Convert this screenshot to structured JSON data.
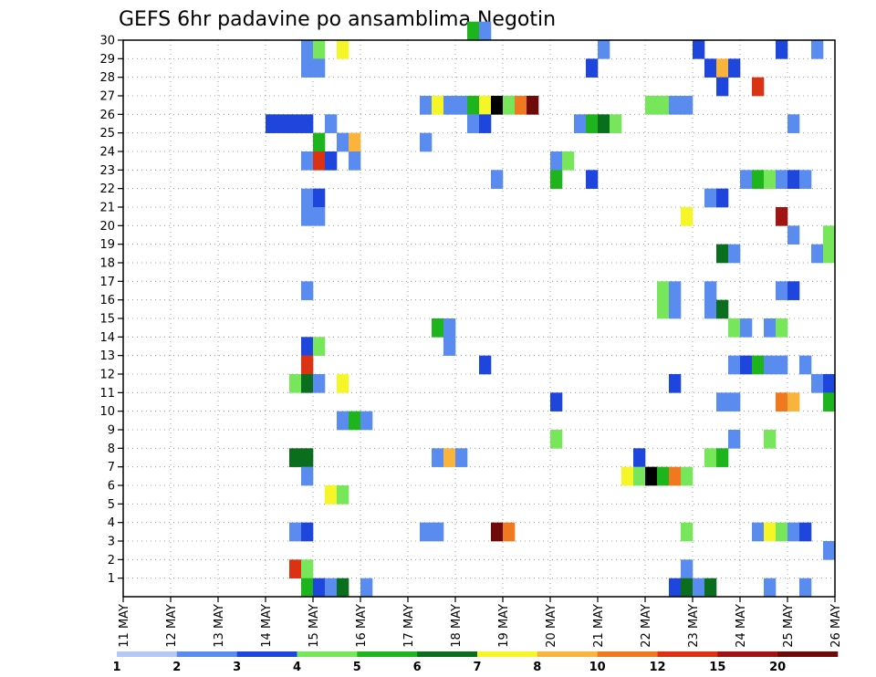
{
  "chart_data": {
    "type": "heatmap",
    "title": "GEFS 6hr padavine po ansamblima Negotin",
    "x_tick_labels": [
      "11 MAY",
      "12 MAY",
      "13 MAY",
      "14 MAY",
      "15 MAY",
      "16 MAY",
      "17 MAY",
      "18 MAY",
      "19 MAY",
      "20 MAY",
      "21 MAY",
      "22 MAY",
      "23 MAY",
      "24 MAY",
      "25 MAY",
      "26 MAY"
    ],
    "x_step_hours": 6,
    "y_tick_labels": [
      "1",
      "2",
      "3",
      "4",
      "5",
      "6",
      "7",
      "8",
      "9",
      "10",
      "11",
      "12",
      "13",
      "14",
      "15",
      "16",
      "17",
      "18",
      "19",
      "20",
      "21",
      "22",
      "23",
      "24",
      "25",
      "26",
      "27",
      "28",
      "29",
      "30"
    ],
    "y_range": [
      0,
      30
    ],
    "grid": true,
    "legend": {
      "placement": "bottom",
      "labels": [
        "1",
        "2",
        "3",
        "4",
        "5",
        "6",
        "7",
        "8",
        "10",
        "12",
        "15",
        "20"
      ],
      "colors": [
        "#b4c8f5",
        "#5a8cf0",
        "#1e46dc",
        "#78e65a",
        "#1eb41e",
        "#0a6e1e",
        "#f5f528",
        "#fab43c",
        "#f0781e",
        "#dc3214",
        "#a01414",
        "#6e0a0a"
      ]
    },
    "cells": [
      [
        30,
        29,
        4
      ],
      [
        30,
        30,
        1
      ],
      [
        29,
        15,
        1
      ],
      [
        29,
        16,
        3
      ],
      [
        29,
        18,
        6
      ],
      [
        29,
        40,
        1
      ],
      [
        29,
        48,
        2
      ],
      [
        29,
        55,
        2
      ],
      [
        29,
        58,
        1
      ],
      [
        28,
        15,
        1
      ],
      [
        28,
        16,
        1
      ],
      [
        28,
        39,
        2
      ],
      [
        28,
        49,
        2
      ],
      [
        28,
        50,
        7
      ],
      [
        28,
        51,
        2
      ],
      [
        27,
        50,
        2
      ],
      [
        27,
        53,
        9
      ],
      [
        26,
        25,
        1
      ],
      [
        26,
        26,
        6
      ],
      [
        26,
        27,
        1
      ],
      [
        26,
        28,
        1
      ],
      [
        26,
        29,
        4
      ],
      [
        26,
        30,
        6
      ],
      [
        26,
        31,
        12
      ],
      [
        26,
        32,
        3
      ],
      [
        26,
        33,
        8
      ],
      [
        26,
        34,
        11
      ],
      [
        26,
        44,
        3
      ],
      [
        26,
        45,
        3
      ],
      [
        26,
        46,
        1
      ],
      [
        26,
        47,
        1
      ],
      [
        25,
        12,
        2
      ],
      [
        25,
        13,
        2
      ],
      [
        25,
        14,
        2
      ],
      [
        25,
        15,
        2
      ],
      [
        25,
        17,
        1
      ],
      [
        25,
        29,
        1
      ],
      [
        25,
        30,
        2
      ],
      [
        25,
        38,
        1
      ],
      [
        25,
        39,
        4
      ],
      [
        25,
        40,
        5
      ],
      [
        25,
        41,
        3
      ],
      [
        25,
        56,
        1
      ],
      [
        24,
        16,
        4
      ],
      [
        24,
        18,
        1
      ],
      [
        24,
        19,
        7
      ],
      [
        24,
        25,
        1
      ],
      [
        23,
        15,
        1
      ],
      [
        23,
        16,
        9
      ],
      [
        23,
        17,
        2
      ],
      [
        23,
        19,
        1
      ],
      [
        23,
        36,
        1
      ],
      [
        23,
        37,
        3
      ],
      [
        22,
        31,
        1
      ],
      [
        22,
        36,
        4
      ],
      [
        22,
        39,
        2
      ],
      [
        22,
        52,
        1
      ],
      [
        22,
        53,
        4
      ],
      [
        22,
        54,
        3
      ],
      [
        22,
        55,
        1
      ],
      [
        22,
        56,
        2
      ],
      [
        22,
        57,
        1
      ],
      [
        21,
        15,
        1
      ],
      [
        21,
        16,
        2
      ],
      [
        21,
        49,
        1
      ],
      [
        21,
        50,
        2
      ],
      [
        20,
        15,
        1
      ],
      [
        20,
        16,
        1
      ],
      [
        20,
        47,
        6
      ],
      [
        20,
        55,
        10
      ],
      [
        19,
        56,
        1
      ],
      [
        19,
        59,
        3
      ],
      [
        18,
        50,
        5
      ],
      [
        18,
        51,
        1
      ],
      [
        18,
        58,
        1
      ],
      [
        18,
        59,
        3
      ],
      [
        16,
        15,
        1
      ],
      [
        16,
        45,
        3
      ],
      [
        16,
        46,
        1
      ],
      [
        16,
        49,
        1
      ],
      [
        16,
        55,
        1
      ],
      [
        16,
        56,
        2
      ],
      [
        15,
        45,
        3
      ],
      [
        15,
        46,
        1
      ],
      [
        15,
        49,
        1
      ],
      [
        15,
        50,
        5
      ],
      [
        14,
        26,
        4
      ],
      [
        14,
        27,
        1
      ],
      [
        14,
        51,
        3
      ],
      [
        14,
        52,
        1
      ],
      [
        14,
        54,
        1
      ],
      [
        14,
        55,
        3
      ],
      [
        13,
        15,
        2
      ],
      [
        13,
        16,
        3
      ],
      [
        13,
        27,
        1
      ],
      [
        12,
        15,
        9
      ],
      [
        12,
        30,
        2
      ],
      [
        12,
        51,
        1
      ],
      [
        12,
        52,
        2
      ],
      [
        12,
        53,
        4
      ],
      [
        12,
        54,
        1
      ],
      [
        12,
        55,
        1
      ],
      [
        12,
        57,
        1
      ],
      [
        11,
        14,
        3
      ],
      [
        11,
        15,
        5
      ],
      [
        11,
        16,
        1
      ],
      [
        11,
        18,
        6
      ],
      [
        11,
        46,
        2
      ],
      [
        11,
        58,
        1
      ],
      [
        11,
        59,
        2
      ],
      [
        10,
        36,
        2
      ],
      [
        10,
        50,
        1
      ],
      [
        10,
        51,
        1
      ],
      [
        10,
        55,
        8
      ],
      [
        10,
        56,
        7
      ],
      [
        10,
        59,
        4
      ],
      [
        9,
        18,
        1
      ],
      [
        9,
        19,
        4
      ],
      [
        9,
        20,
        1
      ],
      [
        8,
        36,
        3
      ],
      [
        8,
        51,
        1
      ],
      [
        8,
        54,
        3
      ],
      [
        7,
        14,
        5
      ],
      [
        7,
        15,
        5
      ],
      [
        7,
        26,
        1
      ],
      [
        7,
        27,
        7
      ],
      [
        7,
        28,
        1
      ],
      [
        7,
        43,
        2
      ],
      [
        7,
        49,
        3
      ],
      [
        7,
        50,
        4
      ],
      [
        6,
        15,
        1
      ],
      [
        6,
        42,
        6
      ],
      [
        6,
        43,
        3
      ],
      [
        6,
        44,
        12
      ],
      [
        6,
        45,
        4
      ],
      [
        6,
        46,
        8
      ],
      [
        6,
        47,
        3
      ],
      [
        5,
        17,
        6
      ],
      [
        5,
        18,
        3
      ],
      [
        3,
        14,
        1
      ],
      [
        3,
        15,
        2
      ],
      [
        3,
        25,
        1
      ],
      [
        3,
        26,
        1
      ],
      [
        3,
        31,
        11
      ],
      [
        3,
        32,
        8
      ],
      [
        3,
        47,
        3
      ],
      [
        3,
        53,
        1
      ],
      [
        3,
        54,
        6
      ],
      [
        3,
        55,
        3
      ],
      [
        3,
        56,
        1
      ],
      [
        3,
        57,
        2
      ],
      [
        2,
        59,
        1
      ],
      [
        1,
        14,
        9
      ],
      [
        1,
        15,
        3
      ],
      [
        1,
        47,
        1
      ],
      [
        0,
        15,
        4
      ],
      [
        0,
        16,
        2
      ],
      [
        0,
        17,
        1
      ],
      [
        0,
        18,
        5
      ],
      [
        0,
        20,
        1
      ],
      [
        0,
        46,
        2
      ],
      [
        0,
        47,
        5
      ],
      [
        0,
        48,
        1
      ],
      [
        0,
        49,
        5
      ],
      [
        0,
        54,
        1
      ],
      [
        0,
        57,
        1
      ]
    ]
  }
}
